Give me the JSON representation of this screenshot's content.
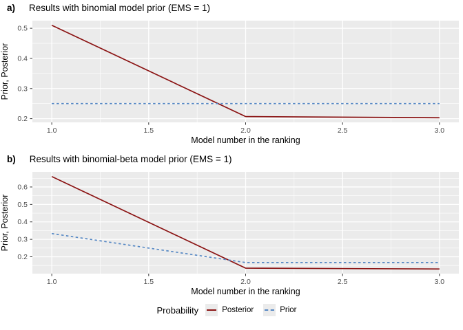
{
  "figure": {
    "legend": {
      "title": "Probability",
      "items": [
        {
          "name": "Posterior",
          "style": "solid",
          "color": "#8B1414"
        },
        {
          "name": "Prior",
          "style": "dashed",
          "color": "#5688C4"
        }
      ]
    },
    "colors": {
      "panel_background": "#EBEBEB",
      "gridline": "#FFFFFF",
      "tick_label": "#4D4D4D",
      "tick_mark": "#333333",
      "text": "#000000",
      "posterior_line": "#8B1414",
      "prior_line": "#5688C4"
    }
  },
  "chart_data": [
    {
      "type": "line",
      "panel_label": "a)",
      "title": "Results with binomial model prior (EMS = 1)",
      "xlabel": "Model number in the ranking",
      "ylabel": "Prior, Posterior",
      "x": [
        1,
        2,
        3
      ],
      "xlim": [
        0.9,
        3.1
      ],
      "x_tick_values": [
        1.0,
        1.5,
        2.0,
        2.5,
        3.0
      ],
      "x_tick_labels": [
        "1.0",
        "1.5",
        "2.0",
        "2.5",
        "3.0"
      ],
      "y_tick_values": [
        0.2,
        0.3,
        0.4,
        0.5
      ],
      "y_tick_labels": [
        "0.2",
        "0.3",
        "0.4",
        "0.5"
      ],
      "grid": true,
      "legend_position": "bottom",
      "series": [
        {
          "name": "Posterior",
          "values": [
            0.51,
            0.207,
            0.203
          ],
          "color": "#8B1414",
          "dash": "solid"
        },
        {
          "name": "Prior",
          "values": [
            0.25,
            0.25,
            0.25
          ],
          "color": "#5688C4",
          "dash": "dashed"
        }
      ]
    },
    {
      "type": "line",
      "panel_label": "b)",
      "title": "Results with binomial-beta model prior (EMS = 1)",
      "xlabel": "Model number in the ranking",
      "ylabel": "Prior, Posterior",
      "x": [
        1,
        2,
        3
      ],
      "xlim": [
        0.9,
        3.1
      ],
      "x_tick_values": [
        1.0,
        1.5,
        2.0,
        2.5,
        3.0
      ],
      "x_tick_labels": [
        "1.0",
        "1.5",
        "2.0",
        "2.5",
        "3.0"
      ],
      "y_tick_values": [
        0.2,
        0.3,
        0.4,
        0.5,
        0.6
      ],
      "y_tick_labels": [
        "0.2",
        "0.3",
        "0.4",
        "0.5",
        "0.6"
      ],
      "grid": true,
      "legend_position": "bottom",
      "series": [
        {
          "name": "Posterior",
          "values": [
            0.66,
            0.135,
            0.13
          ],
          "color": "#8B1414",
          "dash": "solid"
        },
        {
          "name": "Prior",
          "values": [
            0.333,
            0.167,
            0.167
          ],
          "color": "#5688C4",
          "dash": "dashed"
        }
      ]
    }
  ]
}
